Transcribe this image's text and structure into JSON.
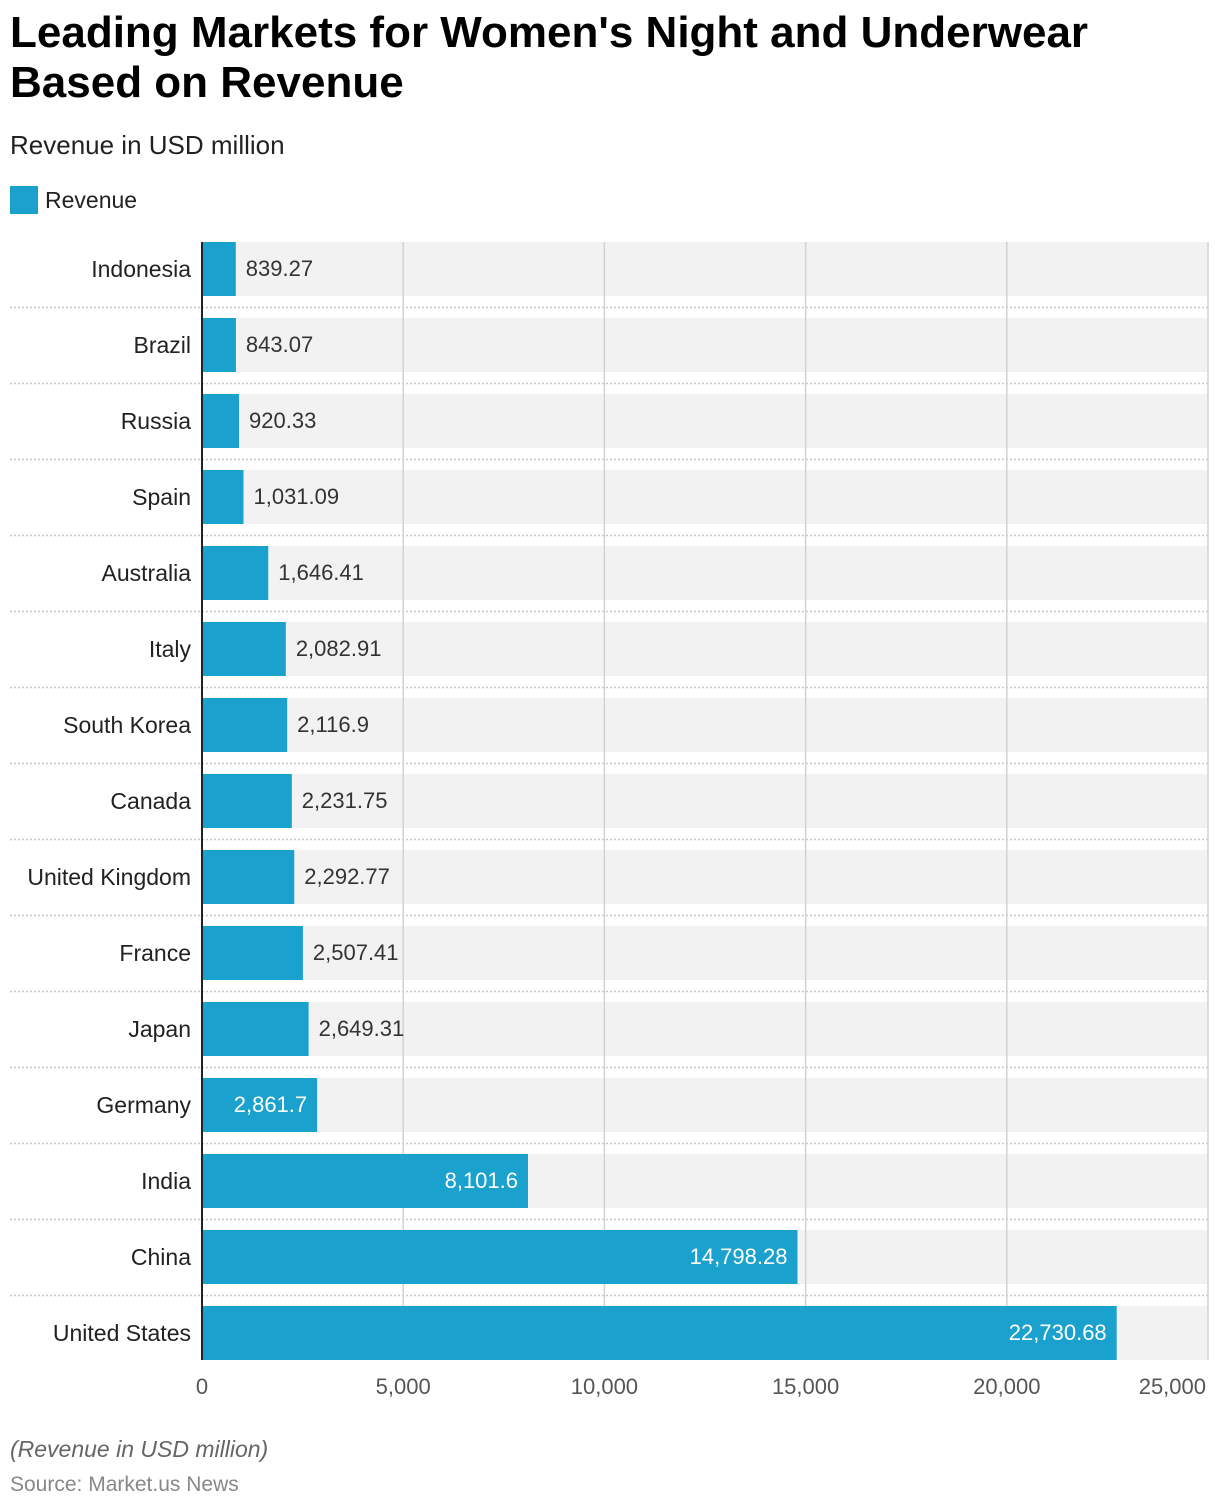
{
  "chart_data": {
    "type": "bar",
    "orientation": "horizontal",
    "title": "Leading Markets for Women's Night and Underwear Based on Revenue",
    "subtitle": "Revenue in USD million",
    "legend": {
      "placement": "top-left",
      "entries": [
        "Revenue"
      ]
    },
    "categories": [
      "Indonesia",
      "Brazil",
      "Russia",
      "Spain",
      "Australia",
      "Italy",
      "South Korea",
      "Canada",
      "United Kingdom",
      "France",
      "Japan",
      "Germany",
      "India",
      "China",
      "United States"
    ],
    "series": [
      {
        "name": "Revenue",
        "color": "#1aa1cd",
        "values": [
          839.27,
          843.07,
          920.33,
          1031.09,
          1646.41,
          2082.91,
          2116.9,
          2231.75,
          2292.77,
          2507.41,
          2649.31,
          2861.7,
          8101.6,
          14798.28,
          22730.68
        ],
        "labels": [
          "839.27",
          "843.07",
          "920.33",
          "1,031.09",
          "1,646.41",
          "2,082.91",
          "2,116.9",
          "2,231.75",
          "2,292.77",
          "2,507.41",
          "2,649.31",
          "2,861.7",
          "8,101.6",
          "14,798.28",
          "22,730.68"
        ]
      }
    ],
    "xlim": [
      0,
      25000
    ],
    "xticks": [
      0,
      5000,
      10000,
      15000,
      20000,
      25000
    ],
    "xtick_labels": [
      "0",
      "5,000",
      "10,000",
      "15,000",
      "20,000",
      "25,000"
    ],
    "grid": true,
    "xlabel": "",
    "ylabel": ""
  },
  "footer": {
    "note": "(Revenue in USD million)",
    "source": "Source: Market.us News"
  }
}
